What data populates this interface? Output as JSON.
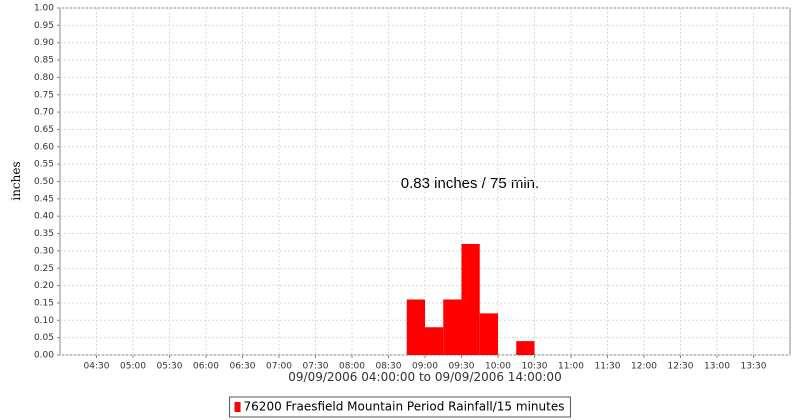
{
  "chart_data": {
    "type": "bar",
    "x": [
      "08:45",
      "09:00",
      "09:15",
      "09:30",
      "09:45",
      "10:15"
    ],
    "values": [
      0.16,
      0.08,
      0.16,
      0.32,
      0.12,
      0.04
    ],
    "color": "#ff0000",
    "xlim": [
      "04:00",
      "14:00"
    ],
    "xticks": [
      "04:30",
      "05:00",
      "05:30",
      "06:00",
      "06:30",
      "07:00",
      "07:30",
      "08:00",
      "08:30",
      "09:00",
      "09:30",
      "10:00",
      "10:30",
      "11:00",
      "11:30",
      "12:00",
      "12:30",
      "13:00",
      "13:30"
    ],
    "ylim": [
      0,
      1
    ],
    "yticks": [
      {
        "value": 0,
        "label": "0.00"
      },
      {
        "value": 0.05,
        "label": "0.05"
      },
      {
        "value": 0.1,
        "label": "0.10"
      },
      {
        "value": 0.15,
        "label": "0.15"
      },
      {
        "value": 0.2,
        "label": "0.20"
      },
      {
        "value": 0.25,
        "label": "0.25"
      },
      {
        "value": 0.3,
        "label": "0.30"
      },
      {
        "value": 0.35,
        "label": "0.35"
      },
      {
        "value": 0.4,
        "label": "0.40"
      },
      {
        "value": 0.45,
        "label": "0.45"
      },
      {
        "value": 0.5,
        "label": "0.50"
      },
      {
        "value": 0.55,
        "label": "0.55"
      },
      {
        "value": 0.6,
        "label": "0.60"
      },
      {
        "value": 0.65,
        "label": "0.65"
      },
      {
        "value": 0.7,
        "label": "0.70"
      },
      {
        "value": 0.75,
        "label": "0.75"
      },
      {
        "value": 0.8,
        "label": "0.80"
      },
      {
        "value": 0.85,
        "label": "0.85"
      },
      {
        "value": 0.9,
        "label": "0.90"
      },
      {
        "value": 0.95,
        "label": "0.95"
      },
      {
        "value": 1,
        "label": "1.00"
      }
    ],
    "grid": true,
    "ylabel": "inches",
    "xlabel": "09/09/2006 04:00:00 to 09/09/2006 14:00:00",
    "annotation": "0.83 inches / 75 min.",
    "legend_label": "76200 Fraesfield Mountain Period Rainfall/15 minutes",
    "legend_position": "bottom"
  }
}
